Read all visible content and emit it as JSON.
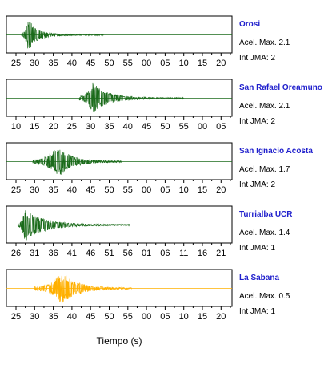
{
  "chart_data": {
    "type": "line",
    "xlabel": "Tiempo (s)",
    "panels": [
      {
        "station": "Orosi",
        "accel_label": "Acel. Max. 2.1",
        "int_label": "Int JMA: 2",
        "color": "#1a6b1a",
        "tick_labels": [
          "25",
          "30",
          "35",
          "40",
          "45",
          "50",
          "55",
          "00",
          "05",
          "10",
          "15",
          "20"
        ],
        "onset": 26.5,
        "peak_time": 28.3,
        "peak_amp": 0.9,
        "decay_s": 2.5,
        "duration_s": 22
      },
      {
        "station": "San Rafael Oreamuno",
        "accel_label": "Acel. Max. 2.1",
        "int_label": "Int JMA: 2",
        "color": "#1a6b1a",
        "tick_labels": [
          "10",
          "15",
          "20",
          "25",
          "30",
          "35",
          "40",
          "45",
          "50",
          "55",
          "00",
          "05"
        ],
        "onset": 27.0,
        "peak_time": 30.5,
        "peak_amp": 0.95,
        "decay_s": 4.0,
        "duration_s": 28
      },
      {
        "station": "San Ignacio Acosta",
        "accel_label": "Acel. Max. 1.7",
        "int_label": "Int JMA: 2",
        "color": "#1a6b1a",
        "tick_labels": [
          "25",
          "30",
          "35",
          "40",
          "45",
          "50",
          "55",
          "00",
          "05",
          "10",
          "15",
          "20"
        ],
        "onset": 29.5,
        "peak_time": 36.3,
        "peak_amp": 0.95,
        "decay_s": 3.5,
        "duration_s": 24
      },
      {
        "station": "Turrialba UCR",
        "accel_label": "Acel. Max. 1.4",
        "int_label": "Int JMA: 1",
        "color": "#1a6b1a",
        "tick_labels": [
          "26",
          "31",
          "36",
          "41",
          "46",
          "51",
          "56",
          "01",
          "06",
          "11",
          "16",
          "21"
        ],
        "onset": 26.5,
        "peak_time": 28.5,
        "peak_amp": 0.95,
        "decay_s": 5.0,
        "duration_s": 30
      },
      {
        "station": "La Sabana",
        "accel_label": "Acel. Max. 0.5",
        "int_label": "Int JMA: 1",
        "color": "#ffb000",
        "tick_labels": [
          "25",
          "30",
          "35",
          "40",
          "45",
          "50",
          "55",
          "00",
          "05",
          "10",
          "15",
          "20"
        ],
        "onset": 30.0,
        "peak_time": 37.5,
        "peak_amp": 0.95,
        "decay_s": 4.0,
        "duration_s": 26
      }
    ]
  }
}
